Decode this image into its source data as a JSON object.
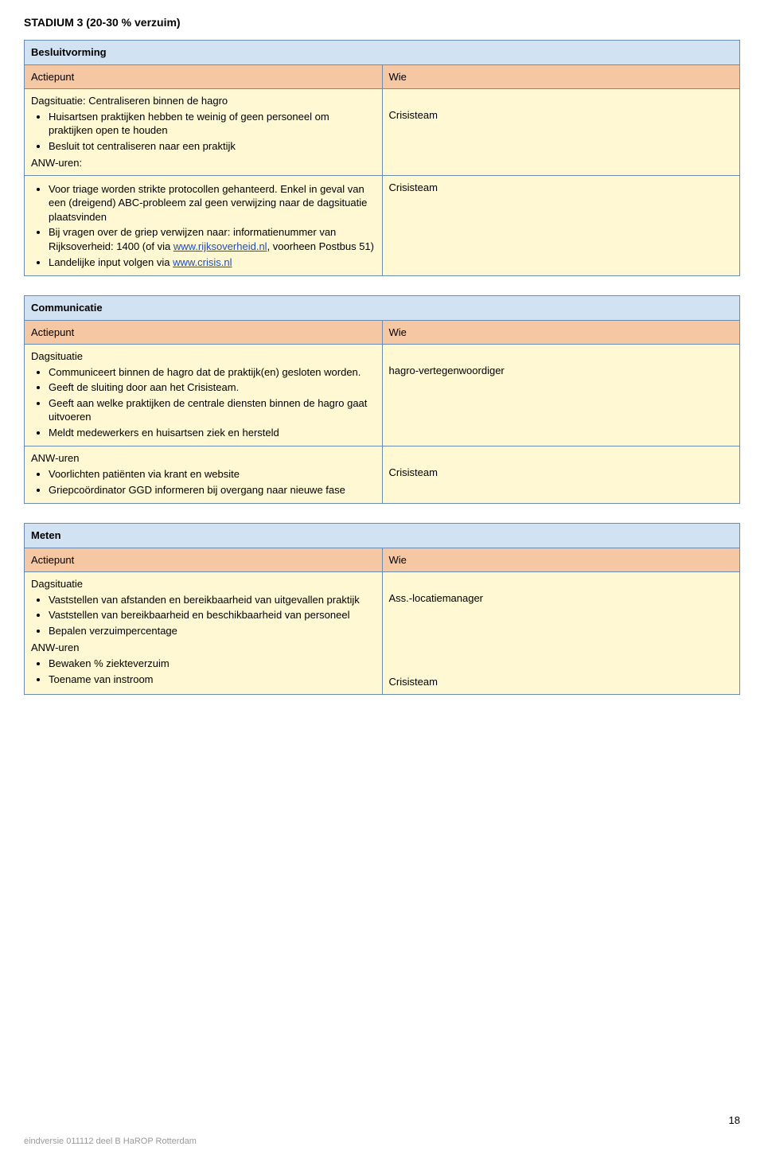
{
  "colors": {
    "section_head_bg": "#d1e2f2",
    "col_head_bg": "#f6c7a3",
    "cell_bg": "#fff8d2",
    "border": "#6b8bb0",
    "link": "#1a4fc0",
    "footer": "#999999"
  },
  "page_title": "STADIUM 3 (20-30 % verzuim)",
  "col_headers": {
    "actiepunt": "Actiepunt",
    "wie": "Wie"
  },
  "besluitvorming": {
    "heading": "Besluitvorming",
    "row1_intro": "Dagsituatie: Centraliseren binnen de hagro",
    "row1_b1": "Huisartsen praktijken hebben te weinig of geen personeel om praktijken open te houden",
    "row1_b2": "Besluit tot centraliseren naar een praktijk",
    "row1_sub": "ANW-uren:",
    "row1_who": "Crisisteam",
    "row2_b1a": "Voor triage worden strikte protocollen gehanteerd. Enkel in geval van een (dreigend) ABC-probleem zal geen verwijzing naar de dagsituatie plaatsvinden",
    "row2_b2a": "Bij vragen over de griep verwijzen naar: informatienummer van Rijksoverheid: 1400 (of via ",
    "row2_link1": "www.rijksoverheid.nl",
    "row2_b2b": ", voorheen Postbus 51)",
    "row2_b3a": "Landelijke input volgen via ",
    "row2_link2": "www.crisis.nl",
    "row2_who": "Crisisteam"
  },
  "communicatie": {
    "heading": "Communicatie",
    "row1_intro": "Dagsituatie",
    "row1_b1": "Communiceert binnen de hagro dat de praktijk(en) gesloten worden.",
    "row1_b2": "Geeft de sluiting door aan het Crisisteam.",
    "row1_b3": "Geeft aan welke praktijken de centrale diensten binnen de hagro gaat uitvoeren",
    "row1_b4": "Meldt medewerkers en huisartsen ziek en hersteld",
    "row1_who": "hagro-vertegenwoordiger",
    "row2_intro": "ANW-uren",
    "row2_b1": "Voorlichten patiënten via krant en website",
    "row2_b2": "Griepcoördinator GGD informeren bij overgang naar nieuwe fase",
    "row2_who": "Crisisteam"
  },
  "meten": {
    "heading": "Meten",
    "row1_intro": "Dagsituatie",
    "row1_b1": "Vaststellen van afstanden en bereikbaarheid van uitgevallen praktijk",
    "row1_b2": "Vaststellen van bereikbaarheid en beschikbaarheid van personeel",
    "row1_b3": "Bepalen verzuimpercentage",
    "row1_sub": "ANW-uren",
    "row1_b4": "Bewaken % ziekteverzuim",
    "row1_b5": "Toename van instroom",
    "row1_who1": "Ass.-locatiemanager",
    "row1_who2": "Crisisteam"
  },
  "footer_text": "eindversie 011112 deel B HaROP Rotterdam",
  "page_number": "18"
}
